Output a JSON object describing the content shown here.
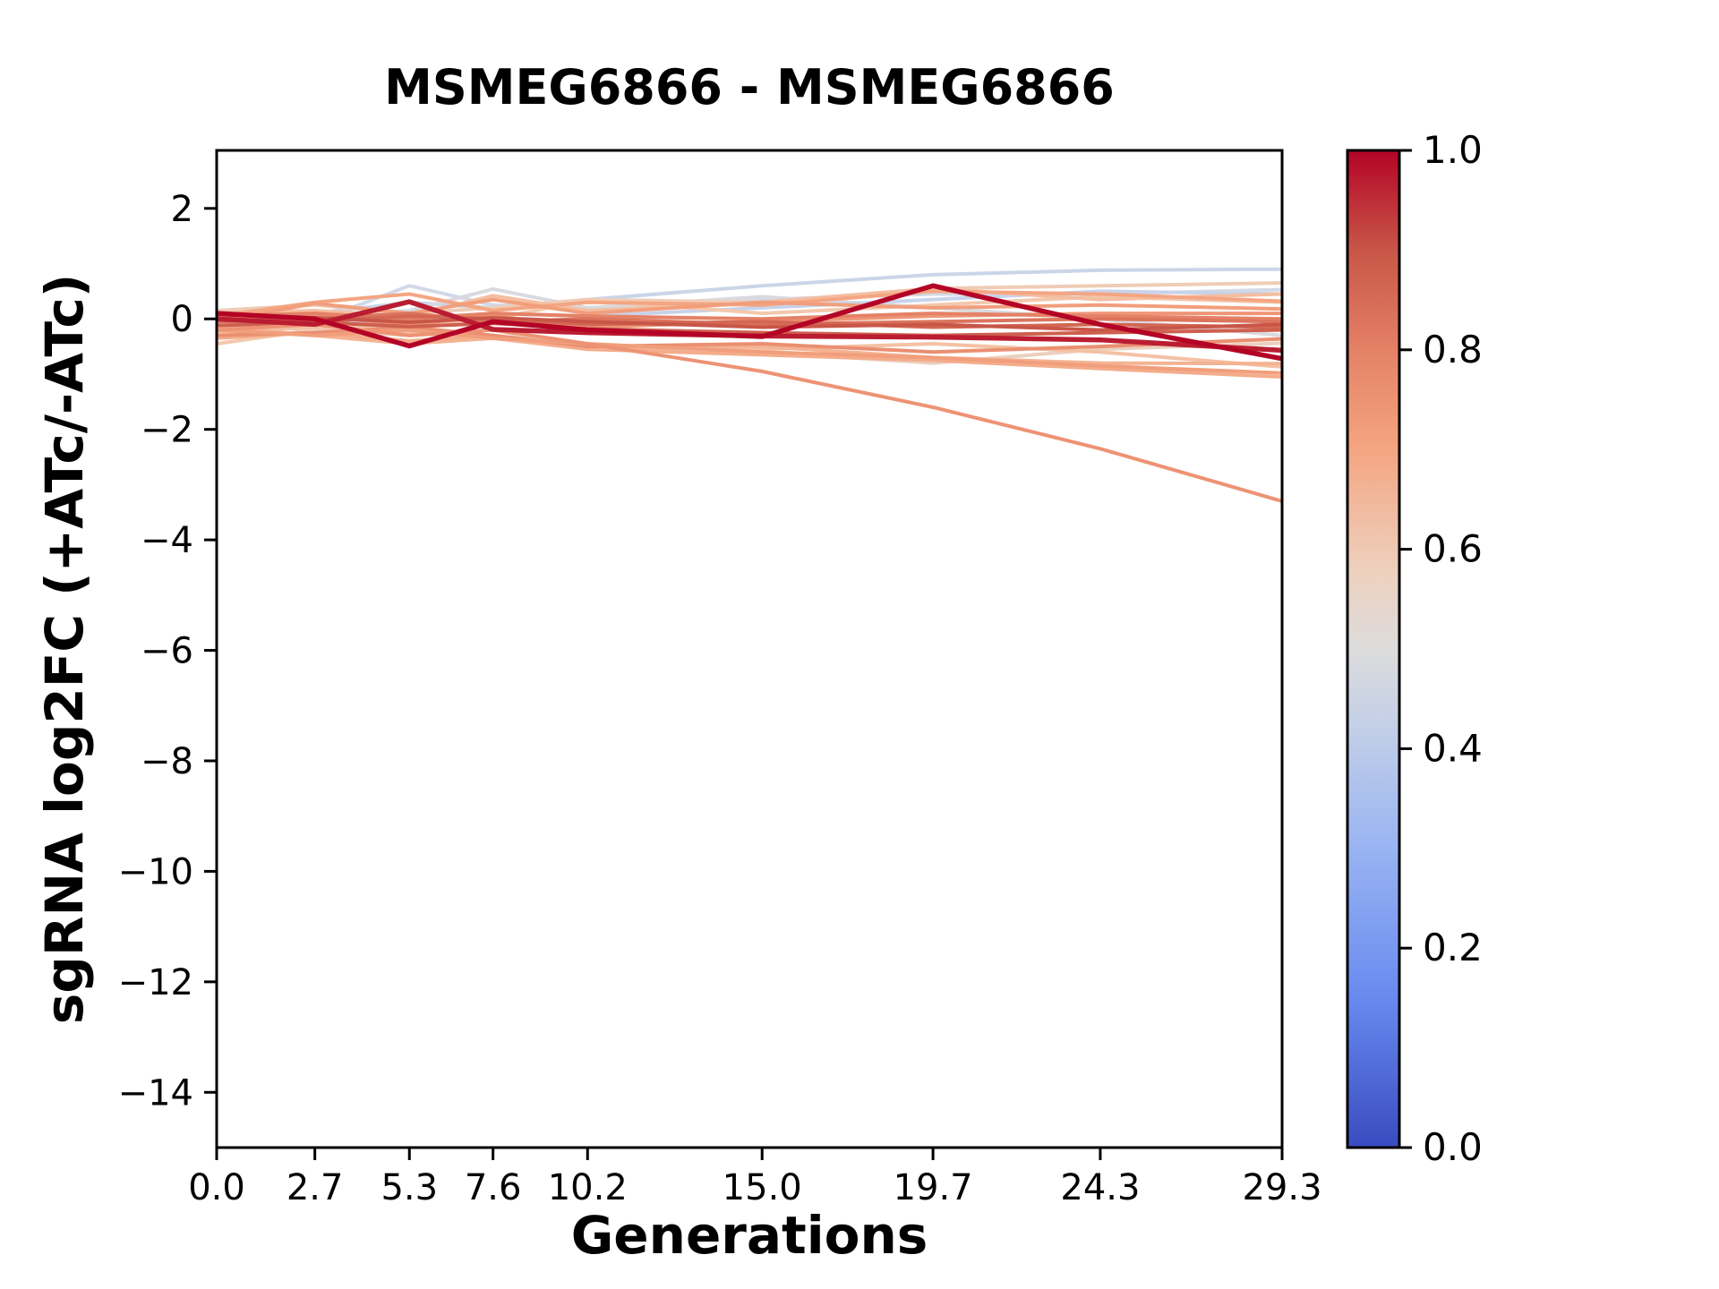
{
  "title": "MSMEG6866 - MSMEG6866",
  "xlabel": "Generations",
  "ylabel": "sgRNA log2FC (+ATc/-ATc)",
  "chart_data": {
    "type": "line",
    "title": "MSMEG6866 - MSMEG6866",
    "xlabel": "Generations",
    "ylabel": "sgRNA log2FC (+ATc/-ATc)",
    "grid": false,
    "legend": "none, colorbar on right",
    "xlim": [
      0,
      29.3
    ],
    "ylim": [
      -15,
      3.05
    ],
    "x": [
      0.0,
      2.7,
      5.3,
      7.6,
      10.2,
      15.0,
      19.7,
      24.3,
      29.3
    ],
    "x_tick_labels": [
      "0.0",
      "2.7",
      "5.3",
      "7.6",
      "10.2",
      "15.0",
      "19.7",
      "24.3",
      "29.3"
    ],
    "y_ticks": [
      2,
      0,
      -2,
      -4,
      -6,
      -8,
      -10,
      -12,
      -14
    ],
    "y_tick_labels": [
      "2",
      "0",
      "−2",
      "−4",
      "−6",
      "−8",
      "−10",
      "−12",
      "−14"
    ],
    "series": [
      {
        "colormap_value": 0.45,
        "color": "#cbd5e8",
        "width": 4,
        "y": [
          0.0,
          0.1,
          0.3,
          0.2,
          0.35,
          0.6,
          0.8,
          0.88,
          0.9
        ]
      },
      {
        "colormap_value": 0.47,
        "color": "#d2d9e7",
        "width": 4,
        "y": [
          0.05,
          -0.05,
          0.6,
          0.25,
          0.2,
          0.35,
          0.45,
          0.45,
          0.53
        ]
      },
      {
        "colormap_value": 0.5,
        "color": "#d9dadf",
        "width": 4,
        "y": [
          -0.1,
          0.05,
          0.15,
          0.54,
          0.2,
          0.4,
          0.2,
          0.0,
          -0.3
        ]
      },
      {
        "colormap_value": 0.44,
        "color": "#c8d2e9",
        "width": 4,
        "y": [
          -0.05,
          -0.1,
          0.0,
          0.1,
          0.05,
          0.2,
          0.35,
          0.5,
          0.45
        ]
      },
      {
        "colormap_value": 0.58,
        "color": "#efccb6",
        "width": 4,
        "y": [
          0.15,
          0.25,
          0.1,
          0.2,
          0.35,
          0.3,
          0.55,
          0.6,
          0.65
        ]
      },
      {
        "colormap_value": 0.6,
        "color": "#f4c8ad",
        "width": 4,
        "y": [
          -0.45,
          -0.2,
          -0.1,
          0.0,
          0.34,
          0.1,
          0.25,
          0.4,
          0.3
        ]
      },
      {
        "colormap_value": 0.63,
        "color": "#f4bea0",
        "width": 4,
        "y": [
          0.1,
          0.15,
          0.05,
          0.42,
          0.15,
          0.3,
          0.55,
          0.35,
          0.45
        ]
      },
      {
        "colormap_value": 0.56,
        "color": "#ebd0be",
        "width": 4,
        "y": [
          -0.1,
          -0.2,
          -0.3,
          -0.2,
          -0.55,
          -0.6,
          -0.8,
          -0.55,
          -0.44
        ]
      },
      {
        "colormap_value": 0.62,
        "color": "#f4c1a4",
        "width": 4,
        "y": [
          -0.25,
          -0.15,
          -0.25,
          -0.3,
          -0.5,
          -0.55,
          -0.45,
          -0.6,
          -0.87
        ]
      },
      {
        "colormap_value": 0.66,
        "color": "#f4b393",
        "width": 4,
        "y": [
          -0.15,
          -0.3,
          -0.45,
          -0.35,
          -0.55,
          -0.5,
          -0.7,
          -0.8,
          -0.81
        ]
      },
      {
        "colormap_value": 0.68,
        "color": "#f4ac8b",
        "width": 4,
        "y": [
          -0.35,
          -0.25,
          -0.4,
          -0.3,
          -0.55,
          -0.65,
          -0.75,
          -0.9,
          -1.05
        ]
      },
      {
        "colormap_value": 0.7,
        "color": "#f4a582",
        "width": 4,
        "y": [
          0.05,
          0.3,
          0.45,
          0.15,
          0.3,
          0.25,
          0.5,
          0.45,
          0.32
        ]
      },
      {
        "colormap_value": 0.72,
        "color": "#f19e7c",
        "width": 4,
        "y": [
          -0.05,
          0.28,
          0.1,
          0.35,
          0.1,
          0.3,
          0.2,
          0.25,
          0.18
        ]
      },
      {
        "colormap_value": 0.74,
        "color": "#ef9677",
        "width": 4,
        "y": [
          0.0,
          0.05,
          -0.1,
          0.05,
          -0.15,
          -0.05,
          0.05,
          0.1,
          0.1
        ]
      },
      {
        "colormap_value": 0.76,
        "color": "#ea8f71",
        "width": 4,
        "y": [
          -0.3,
          -0.25,
          -0.15,
          -0.3,
          -0.5,
          -0.45,
          -0.6,
          -0.5,
          -0.36
        ]
      },
      {
        "colormap_value": 0.72,
        "color": "#f19e7c",
        "width": 4,
        "y": [
          -0.2,
          -0.3,
          -0.2,
          -0.35,
          -0.45,
          -0.6,
          -0.7,
          -0.85,
          -0.98
        ]
      },
      {
        "colormap_value": 0.8,
        "color": "#e48166",
        "width": 4,
        "y": [
          0.05,
          0.1,
          0.0,
          0.1,
          0.05,
          0.0,
          0.1,
          0.05,
          0.0
        ]
      },
      {
        "colormap_value": 0.83,
        "color": "#dc745d",
        "width": 4,
        "y": [
          -0.05,
          0.0,
          0.1,
          -0.05,
          0.0,
          -0.1,
          -0.05,
          0.0,
          -0.05
        ]
      },
      {
        "colormap_value": 0.86,
        "color": "#d36754",
        "width": 4,
        "y": [
          0.0,
          -0.05,
          0.05,
          0.0,
          -0.1,
          -0.05,
          -0.15,
          -0.1,
          -0.15
        ]
      },
      {
        "colormap_value": 0.9,
        "color": "#c85648",
        "width": 4,
        "y": [
          0.08,
          0.02,
          -0.06,
          0.02,
          -0.05,
          -0.15,
          -0.1,
          -0.2,
          -0.1
        ]
      },
      {
        "colormap_value": 0.88,
        "color": "#ce5f4e",
        "width": 4,
        "y": [
          -0.12,
          -0.06,
          -0.14,
          -0.08,
          -0.18,
          -0.25,
          -0.3,
          -0.25,
          -0.2
        ]
      },
      {
        "colormap_value": 0.75,
        "color": "#ed9374",
        "width": 4,
        "y": [
          -0.2,
          -0.1,
          -0.3,
          -0.2,
          -0.45,
          -0.95,
          -1.6,
          -2.35,
          -3.3
        ]
      },
      {
        "colormap_value": 0.97,
        "color": "#ba1d31",
        "width": 5.5,
        "y": [
          0.0,
          -0.1,
          0.31,
          -0.19,
          -0.25,
          -0.31,
          -0.33,
          -0.38,
          -0.57
        ]
      },
      {
        "colormap_value": 1.0,
        "color": "#b40426",
        "width": 5.5,
        "y": [
          0.1,
          0.0,
          -0.49,
          -0.05,
          -0.2,
          -0.32,
          0.6,
          -0.1,
          -0.72
        ]
      }
    ],
    "colorbar": {
      "cmap": "coolwarm",
      "min": 0.0,
      "max": 1.0,
      "tick_labels": [
        "1.0",
        "0.8",
        "0.6",
        "0.4",
        "0.2",
        "0.0"
      ],
      "gradient_stops": [
        {
          "offset": 0.0,
          "color": "#3a4cc0"
        },
        {
          "offset": 0.15,
          "color": "#688aef"
        },
        {
          "offset": 0.3,
          "color": "#99b4f2"
        },
        {
          "offset": 0.42,
          "color": "#c3cfe8"
        },
        {
          "offset": 0.5,
          "color": "#dcdcdc"
        },
        {
          "offset": 0.58,
          "color": "#eed0bd"
        },
        {
          "offset": 0.7,
          "color": "#f4a582"
        },
        {
          "offset": 0.8,
          "color": "#e48166"
        },
        {
          "offset": 0.9,
          "color": "#c85648"
        },
        {
          "offset": 1.0,
          "color": "#b40426"
        }
      ]
    }
  }
}
